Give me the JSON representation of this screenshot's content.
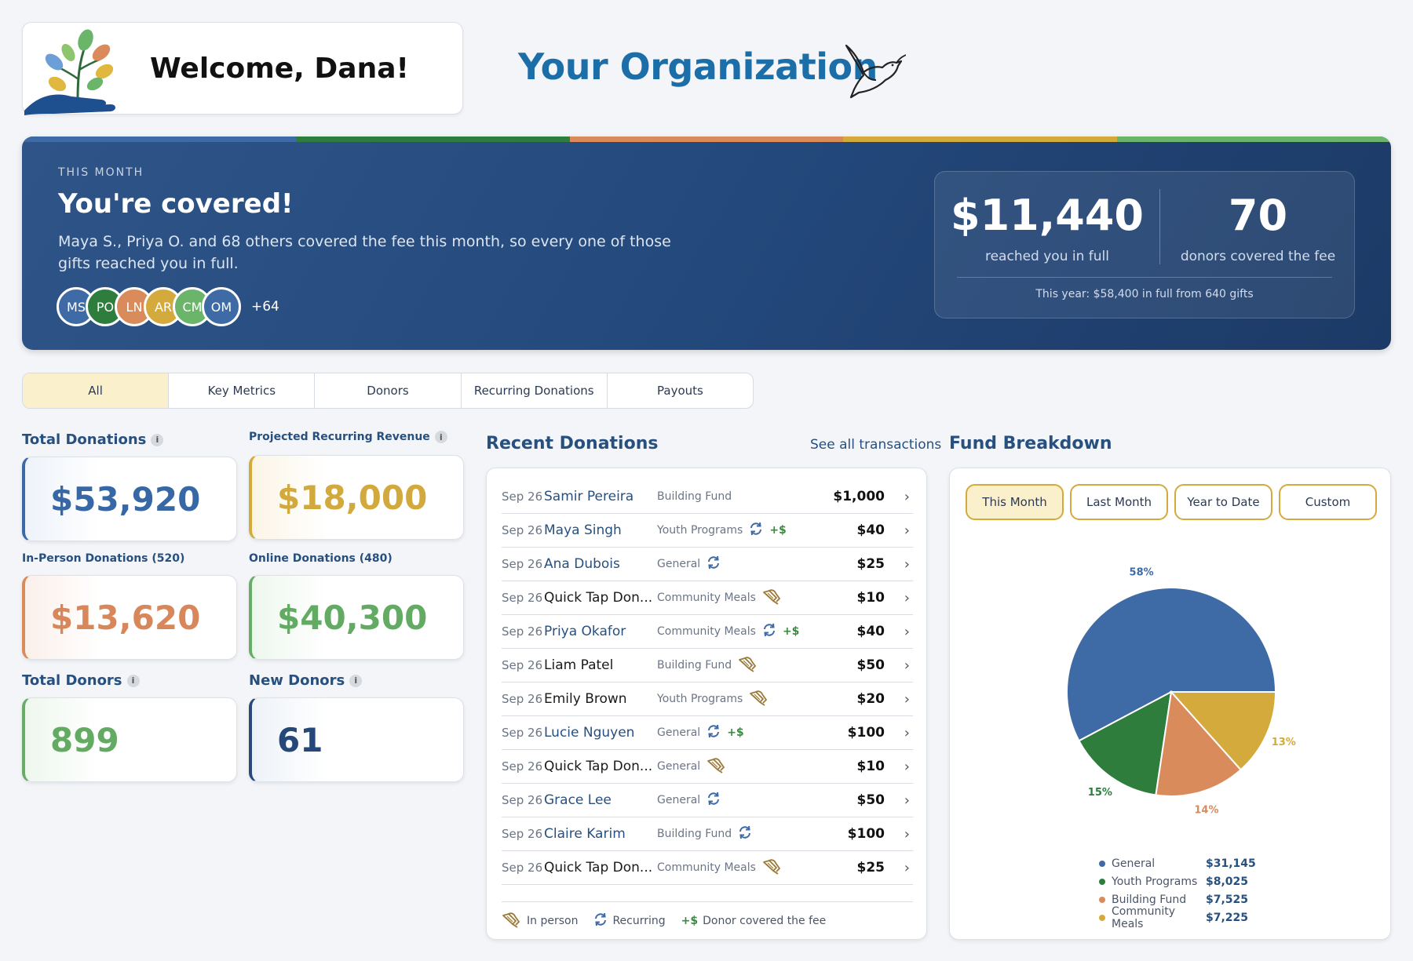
{
  "header": {
    "welcome": "Welcome, Dana!",
    "org_name": "Your Organization"
  },
  "hero": {
    "eyebrow": "THIS MONTH",
    "title": "You're covered!",
    "description": "Maya S., Priya O. and 68 others covered the fee this month, so every one of those gifts reached you in full.",
    "avatars": [
      {
        "initials": "MS",
        "color": "#3e6aa6"
      },
      {
        "initials": "PO",
        "color": "#2e7d3c"
      },
      {
        "initials": "LN",
        "color": "#d98b5c"
      },
      {
        "initials": "AR",
        "color": "#d4aa3c"
      },
      {
        "initials": "CM",
        "color": "#6ab56a"
      },
      {
        "initials": "OM",
        "color": "#3e6aa6"
      }
    ],
    "avatars_more": "+64",
    "amount": "$11,440",
    "amount_label": "reached you in full",
    "donors_count": "70",
    "donors_label": "donors covered the fee",
    "year_summary": "This year: $58,400 in full from 640 gifts",
    "stripe_colors": [
      "#3e6aa6",
      "#2e7d3c",
      "#d98b5c",
      "#d4aa3c",
      "#6ab56a"
    ]
  },
  "tabs": [
    "All",
    "Key Metrics",
    "Donors",
    "Recurring Donations",
    "Payouts"
  ],
  "metrics": {
    "total_donations": {
      "label": "Total Donations",
      "value": "$53,920"
    },
    "projected_recurring": {
      "label": "Projected Recurring Revenue",
      "value": "$18,000"
    },
    "in_person": {
      "label": "In-Person Donations (520)",
      "value": "$13,620"
    },
    "online": {
      "label": "Online Donations (480)",
      "value": "$40,300"
    },
    "total_donors": {
      "label": "Total Donors",
      "value": "899"
    },
    "new_donors": {
      "label": "New Donors",
      "value": "61"
    }
  },
  "recent": {
    "title": "Recent Donations",
    "see_all": "See all transactions",
    "rows": [
      {
        "date": "Sep 26",
        "name": "Samir Pereira",
        "fund": "Building Fund",
        "amount": "$1,000",
        "link": true,
        "inperson": false,
        "recurring": false,
        "fee": false
      },
      {
        "date": "Sep 26",
        "name": "Maya Singh",
        "fund": "Youth Programs",
        "amount": "$40",
        "link": true,
        "inperson": false,
        "recurring": true,
        "fee": true
      },
      {
        "date": "Sep 26",
        "name": "Ana Dubois",
        "fund": "General",
        "amount": "$25",
        "link": true,
        "inperson": false,
        "recurring": true,
        "fee": false
      },
      {
        "date": "Sep 26",
        "name": "Quick Tap Don...",
        "fund": "Community Meals",
        "amount": "$10",
        "link": false,
        "inperson": true,
        "recurring": false,
        "fee": false
      },
      {
        "date": "Sep 26",
        "name": "Priya Okafor",
        "fund": "Community Meals",
        "amount": "$40",
        "link": true,
        "inperson": false,
        "recurring": true,
        "fee": true
      },
      {
        "date": "Sep 26",
        "name": "Liam Patel",
        "fund": "Building Fund",
        "amount": "$50",
        "link": false,
        "inperson": true,
        "recurring": false,
        "fee": false
      },
      {
        "date": "Sep 26",
        "name": "Emily Brown",
        "fund": "Youth Programs",
        "amount": "$20",
        "link": false,
        "inperson": true,
        "recurring": false,
        "fee": false
      },
      {
        "date": "Sep 26",
        "name": "Lucie Nguyen",
        "fund": "General",
        "amount": "$100",
        "link": true,
        "inperson": false,
        "recurring": true,
        "fee": true
      },
      {
        "date": "Sep 26",
        "name": "Quick Tap Don...",
        "fund": "General",
        "amount": "$10",
        "link": false,
        "inperson": true,
        "recurring": false,
        "fee": false
      },
      {
        "date": "Sep 26",
        "name": "Grace Lee",
        "fund": "General",
        "amount": "$50",
        "link": true,
        "inperson": false,
        "recurring": true,
        "fee": false
      },
      {
        "date": "Sep 26",
        "name": "Claire Karim",
        "fund": "Building Fund",
        "amount": "$100",
        "link": true,
        "inperson": false,
        "recurring": true,
        "fee": false
      },
      {
        "date": "Sep 26",
        "name": "Quick Tap Don...",
        "fund": "Community Meals",
        "amount": "$25",
        "link": false,
        "inperson": true,
        "recurring": false,
        "fee": false
      }
    ],
    "legend": {
      "in_person": "In person",
      "recurring": "Recurring",
      "fee_symbol": "+$",
      "fee": "Donor covered the fee"
    }
  },
  "fund_breakdown": {
    "title": "Fund Breakdown",
    "periods": [
      "This Month",
      "Last Month",
      "Year to Date",
      "Custom"
    ],
    "active_period": "This Month"
  },
  "chart_data": {
    "type": "pie",
    "title": "",
    "slices": [
      {
        "name": "General",
        "value": 31145,
        "percent": 58,
        "label": "58%",
        "amount": "$31,145",
        "color": "#3e6aa6"
      },
      {
        "name": "Youth Programs",
        "value": 8025,
        "percent": 15,
        "label": "15%",
        "amount": "$8,025",
        "color": "#2e7d3c"
      },
      {
        "name": "Building Fund",
        "value": 7525,
        "percent": 14,
        "label": "14%",
        "amount": "$7,525",
        "color": "#d98b5c"
      },
      {
        "name": "Community Meals",
        "value": 7225,
        "percent": 13,
        "label": "13%",
        "amount": "$7,225",
        "color": "#d4aa3c"
      }
    ],
    "legend_position": "bottom"
  }
}
